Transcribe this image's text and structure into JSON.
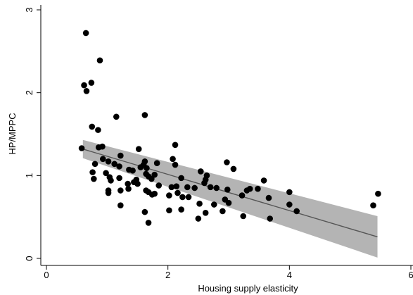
{
  "chart_data": {
    "type": "scatter",
    "title": "",
    "xlabel": "Housing supply elasticity",
    "ylabel": "HP/MPPC",
    "xlim": [
      0,
      6
    ],
    "ylim": [
      0,
      3
    ],
    "xticks": [
      0,
      2,
      4,
      6
    ],
    "yticks": [
      0,
      1,
      2,
      3
    ],
    "xtick_labels": [
      "0",
      "2",
      "4",
      "6"
    ],
    "ytick_labels": [
      "0",
      "1",
      "2",
      "3"
    ],
    "grid": false,
    "legend": "none",
    "colors": {
      "points": "#000000",
      "fit_line": "#555555",
      "ci_band": "#b4b4b4",
      "axis": "#000000"
    },
    "fit": {
      "x": [
        0.6,
        5.45
      ],
      "y": [
        1.32,
        0.26
      ],
      "ci_lower": [
        1.21,
        0.01
      ],
      "ci_upper": [
        1.43,
        0.51
      ]
    },
    "points": [
      {
        "x": 0.65,
        "y": 2.72
      },
      {
        "x": 0.88,
        "y": 2.39
      },
      {
        "x": 0.74,
        "y": 2.12
      },
      {
        "x": 0.62,
        "y": 2.09
      },
      {
        "x": 0.66,
        "y": 2.02
      },
      {
        "x": 1.62,
        "y": 1.73
      },
      {
        "x": 1.15,
        "y": 1.71
      },
      {
        "x": 0.75,
        "y": 1.59
      },
      {
        "x": 0.85,
        "y": 1.55
      },
      {
        "x": 0.58,
        "y": 1.33
      },
      {
        "x": 0.86,
        "y": 1.34
      },
      {
        "x": 0.92,
        "y": 1.35
      },
      {
        "x": 1.52,
        "y": 1.32
      },
      {
        "x": 2.12,
        "y": 1.37
      },
      {
        "x": 1.22,
        "y": 1.24
      },
      {
        "x": 0.93,
        "y": 1.2
      },
      {
        "x": 1.02,
        "y": 1.17
      },
      {
        "x": 1.62,
        "y": 1.17
      },
      {
        "x": 2.08,
        "y": 1.2
      },
      {
        "x": 2.12,
        "y": 1.13
      },
      {
        "x": 0.8,
        "y": 1.14
      },
      {
        "x": 1.12,
        "y": 1.14
      },
      {
        "x": 1.2,
        "y": 1.11
      },
      {
        "x": 1.55,
        "y": 1.1
      },
      {
        "x": 1.65,
        "y": 1.09
      },
      {
        "x": 1.82,
        "y": 1.15
      },
      {
        "x": 1.6,
        "y": 1.13
      },
      {
        "x": 2.97,
        "y": 1.16
      },
      {
        "x": 3.08,
        "y": 1.08
      },
      {
        "x": 0.76,
        "y": 1.04
      },
      {
        "x": 0.98,
        "y": 1.03
      },
      {
        "x": 1.36,
        "y": 1.07
      },
      {
        "x": 1.42,
        "y": 1.06
      },
      {
        "x": 1.64,
        "y": 1.02
      },
      {
        "x": 1.78,
        "y": 1.01
      },
      {
        "x": 2.54,
        "y": 1.05
      },
      {
        "x": 2.64,
        "y": 1.0
      },
      {
        "x": 0.78,
        "y": 0.96
      },
      {
        "x": 1.04,
        "y": 0.98
      },
      {
        "x": 1.2,
        "y": 0.97
      },
      {
        "x": 1.48,
        "y": 0.95
      },
      {
        "x": 1.68,
        "y": 0.99
      },
      {
        "x": 1.73,
        "y": 0.96
      },
      {
        "x": 2.22,
        "y": 0.97
      },
      {
        "x": 2.62,
        "y": 0.95
      },
      {
        "x": 1.06,
        "y": 0.94
      },
      {
        "x": 1.44,
        "y": 0.92
      },
      {
        "x": 1.34,
        "y": 0.9
      },
      {
        "x": 1.5,
        "y": 0.9
      },
      {
        "x": 1.85,
        "y": 0.88
      },
      {
        "x": 2.06,
        "y": 0.86
      },
      {
        "x": 2.14,
        "y": 0.87
      },
      {
        "x": 2.32,
        "y": 0.86
      },
      {
        "x": 2.44,
        "y": 0.85
      },
      {
        "x": 2.6,
        "y": 0.91
      },
      {
        "x": 2.7,
        "y": 0.86
      },
      {
        "x": 2.8,
        "y": 0.85
      },
      {
        "x": 1.35,
        "y": 0.84
      },
      {
        "x": 1.22,
        "y": 0.82
      },
      {
        "x": 1.02,
        "y": 0.82
      },
      {
        "x": 1.02,
        "y": 0.79
      },
      {
        "x": 1.64,
        "y": 0.82
      },
      {
        "x": 1.68,
        "y": 0.8
      },
      {
        "x": 1.78,
        "y": 0.78
      },
      {
        "x": 1.74,
        "y": 0.77
      },
      {
        "x": 2.02,
        "y": 0.76
      },
      {
        "x": 2.16,
        "y": 0.79
      },
      {
        "x": 2.24,
        "y": 0.74
      },
      {
        "x": 2.34,
        "y": 0.74
      },
      {
        "x": 2.98,
        "y": 0.83
      },
      {
        "x": 3.3,
        "y": 0.82
      },
      {
        "x": 3.35,
        "y": 0.84
      },
      {
        "x": 3.48,
        "y": 0.84
      },
      {
        "x": 3.58,
        "y": 0.94
      },
      {
        "x": 3.22,
        "y": 0.76
      },
      {
        "x": 3.66,
        "y": 0.73
      },
      {
        "x": 4.0,
        "y": 0.8
      },
      {
        "x": 2.94,
        "y": 0.71
      },
      {
        "x": 3.0,
        "y": 0.67
      },
      {
        "x": 2.76,
        "y": 0.65
      },
      {
        "x": 2.52,
        "y": 0.66
      },
      {
        "x": 1.22,
        "y": 0.64
      },
      {
        "x": 2.62,
        "y": 0.55
      },
      {
        "x": 2.9,
        "y": 0.57
      },
      {
        "x": 2.02,
        "y": 0.58
      },
      {
        "x": 2.22,
        "y": 0.59
      },
      {
        "x": 1.62,
        "y": 0.56
      },
      {
        "x": 2.5,
        "y": 0.48
      },
      {
        "x": 3.24,
        "y": 0.51
      },
      {
        "x": 3.68,
        "y": 0.48
      },
      {
        "x": 1.68,
        "y": 0.43
      },
      {
        "x": 4.0,
        "y": 0.65
      },
      {
        "x": 4.12,
        "y": 0.57
      },
      {
        "x": 5.38,
        "y": 0.64
      },
      {
        "x": 5.46,
        "y": 0.78
      }
    ]
  }
}
